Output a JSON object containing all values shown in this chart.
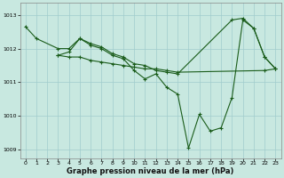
{
  "background_color": "#c8e8e0",
  "grid_color": "#a0cccc",
  "line_color": "#1a5c1a",
  "marker_color": "#1a5c1a",
  "series1_x": [
    0,
    1,
    3,
    4,
    5,
    6,
    7,
    8,
    9,
    10,
    11,
    12,
    13,
    14,
    19,
    20,
    21,
    22,
    23
  ],
  "series1_y": [
    1012.65,
    1012.3,
    1012.0,
    1012.0,
    1012.3,
    1012.15,
    1012.05,
    1011.85,
    1011.75,
    1011.55,
    1011.5,
    1011.35,
    1011.3,
    1011.25,
    1012.85,
    1012.9,
    1012.6,
    1011.75,
    1011.4
  ],
  "series2_x": [
    3,
    4,
    5,
    6,
    7,
    8,
    9,
    10,
    11,
    12,
    13,
    14,
    15,
    16,
    17,
    18,
    19,
    20,
    21,
    22,
    23
  ],
  "series2_y": [
    1011.8,
    1011.9,
    1012.3,
    1012.1,
    1012.0,
    1011.8,
    1011.7,
    1011.35,
    1011.1,
    1011.25,
    1010.85,
    1010.65,
    1009.05,
    1010.05,
    1009.55,
    1009.65,
    1010.55,
    1012.85,
    1012.6,
    1011.75,
    1011.4
  ],
  "series3_x": [
    3,
    4,
    5,
    6,
    7,
    8,
    9,
    10,
    11,
    12,
    13,
    14,
    22,
    23
  ],
  "series3_y": [
    1011.8,
    1011.75,
    1011.75,
    1011.65,
    1011.6,
    1011.55,
    1011.5,
    1011.45,
    1011.4,
    1011.4,
    1011.35,
    1011.3,
    1011.35,
    1011.4
  ],
  "xlim": [
    -0.5,
    23.5
  ],
  "ylim": [
    1008.75,
    1013.35
  ],
  "yticks": [
    1009,
    1010,
    1011,
    1012,
    1013
  ],
  "xticks": [
    0,
    1,
    2,
    3,
    4,
    5,
    6,
    7,
    8,
    9,
    10,
    11,
    12,
    13,
    14,
    15,
    16,
    17,
    18,
    19,
    20,
    21,
    22,
    23
  ],
  "xlabel": "Graphe pression niveau de la mer (hPa)",
  "xlabel_fontsize": 6.0
}
